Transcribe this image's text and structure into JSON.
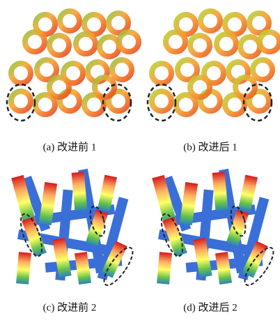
{
  "panels": [
    {
      "caption": "(a) 改进前 1"
    },
    {
      "caption": "(b) 改进后 1"
    },
    {
      "caption": "(c) 改进前 2"
    },
    {
      "caption": "(d) 改进后 2"
    }
  ]
}
